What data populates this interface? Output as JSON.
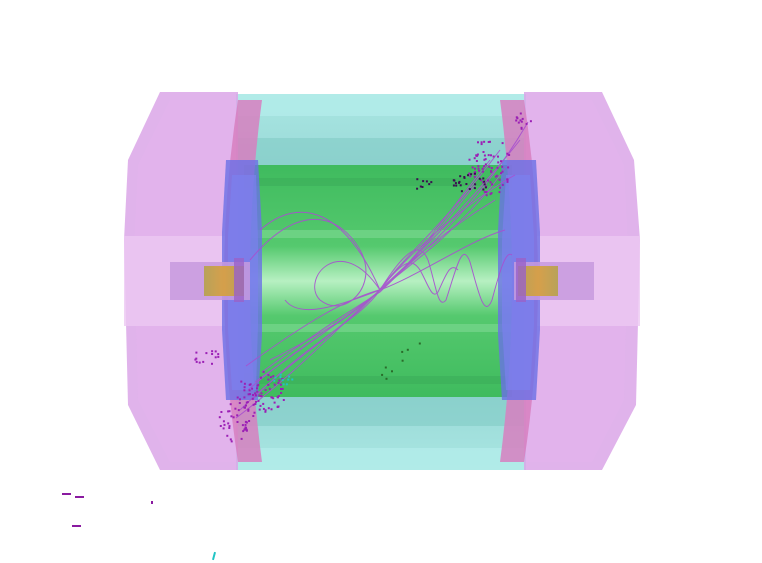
{
  "viewer": {
    "background": "#ffffff"
  },
  "colors": {
    "endcap_outer": "#d9a3e6",
    "endcap_inner": "#e6b3ec",
    "endcap_ring": "#d27bb8",
    "calorimeter": "#8fd9d6",
    "tracker": "#4fc468",
    "tracker_core": "#a8ecb5",
    "disk": "#6b6fe0",
    "beampipe_outer": "#c89be0",
    "beampipe_core": "#c99a3a",
    "track": "#a84fd0",
    "hit": "#9b1fb5",
    "legend_cyan": "#21c4c4"
  },
  "icons": {
    "legend_markers": [
      "dash-marker-icon",
      "dash-marker-icon",
      "dot-marker-icon",
      "dash-marker-icon",
      "tick-marker-icon"
    ]
  }
}
